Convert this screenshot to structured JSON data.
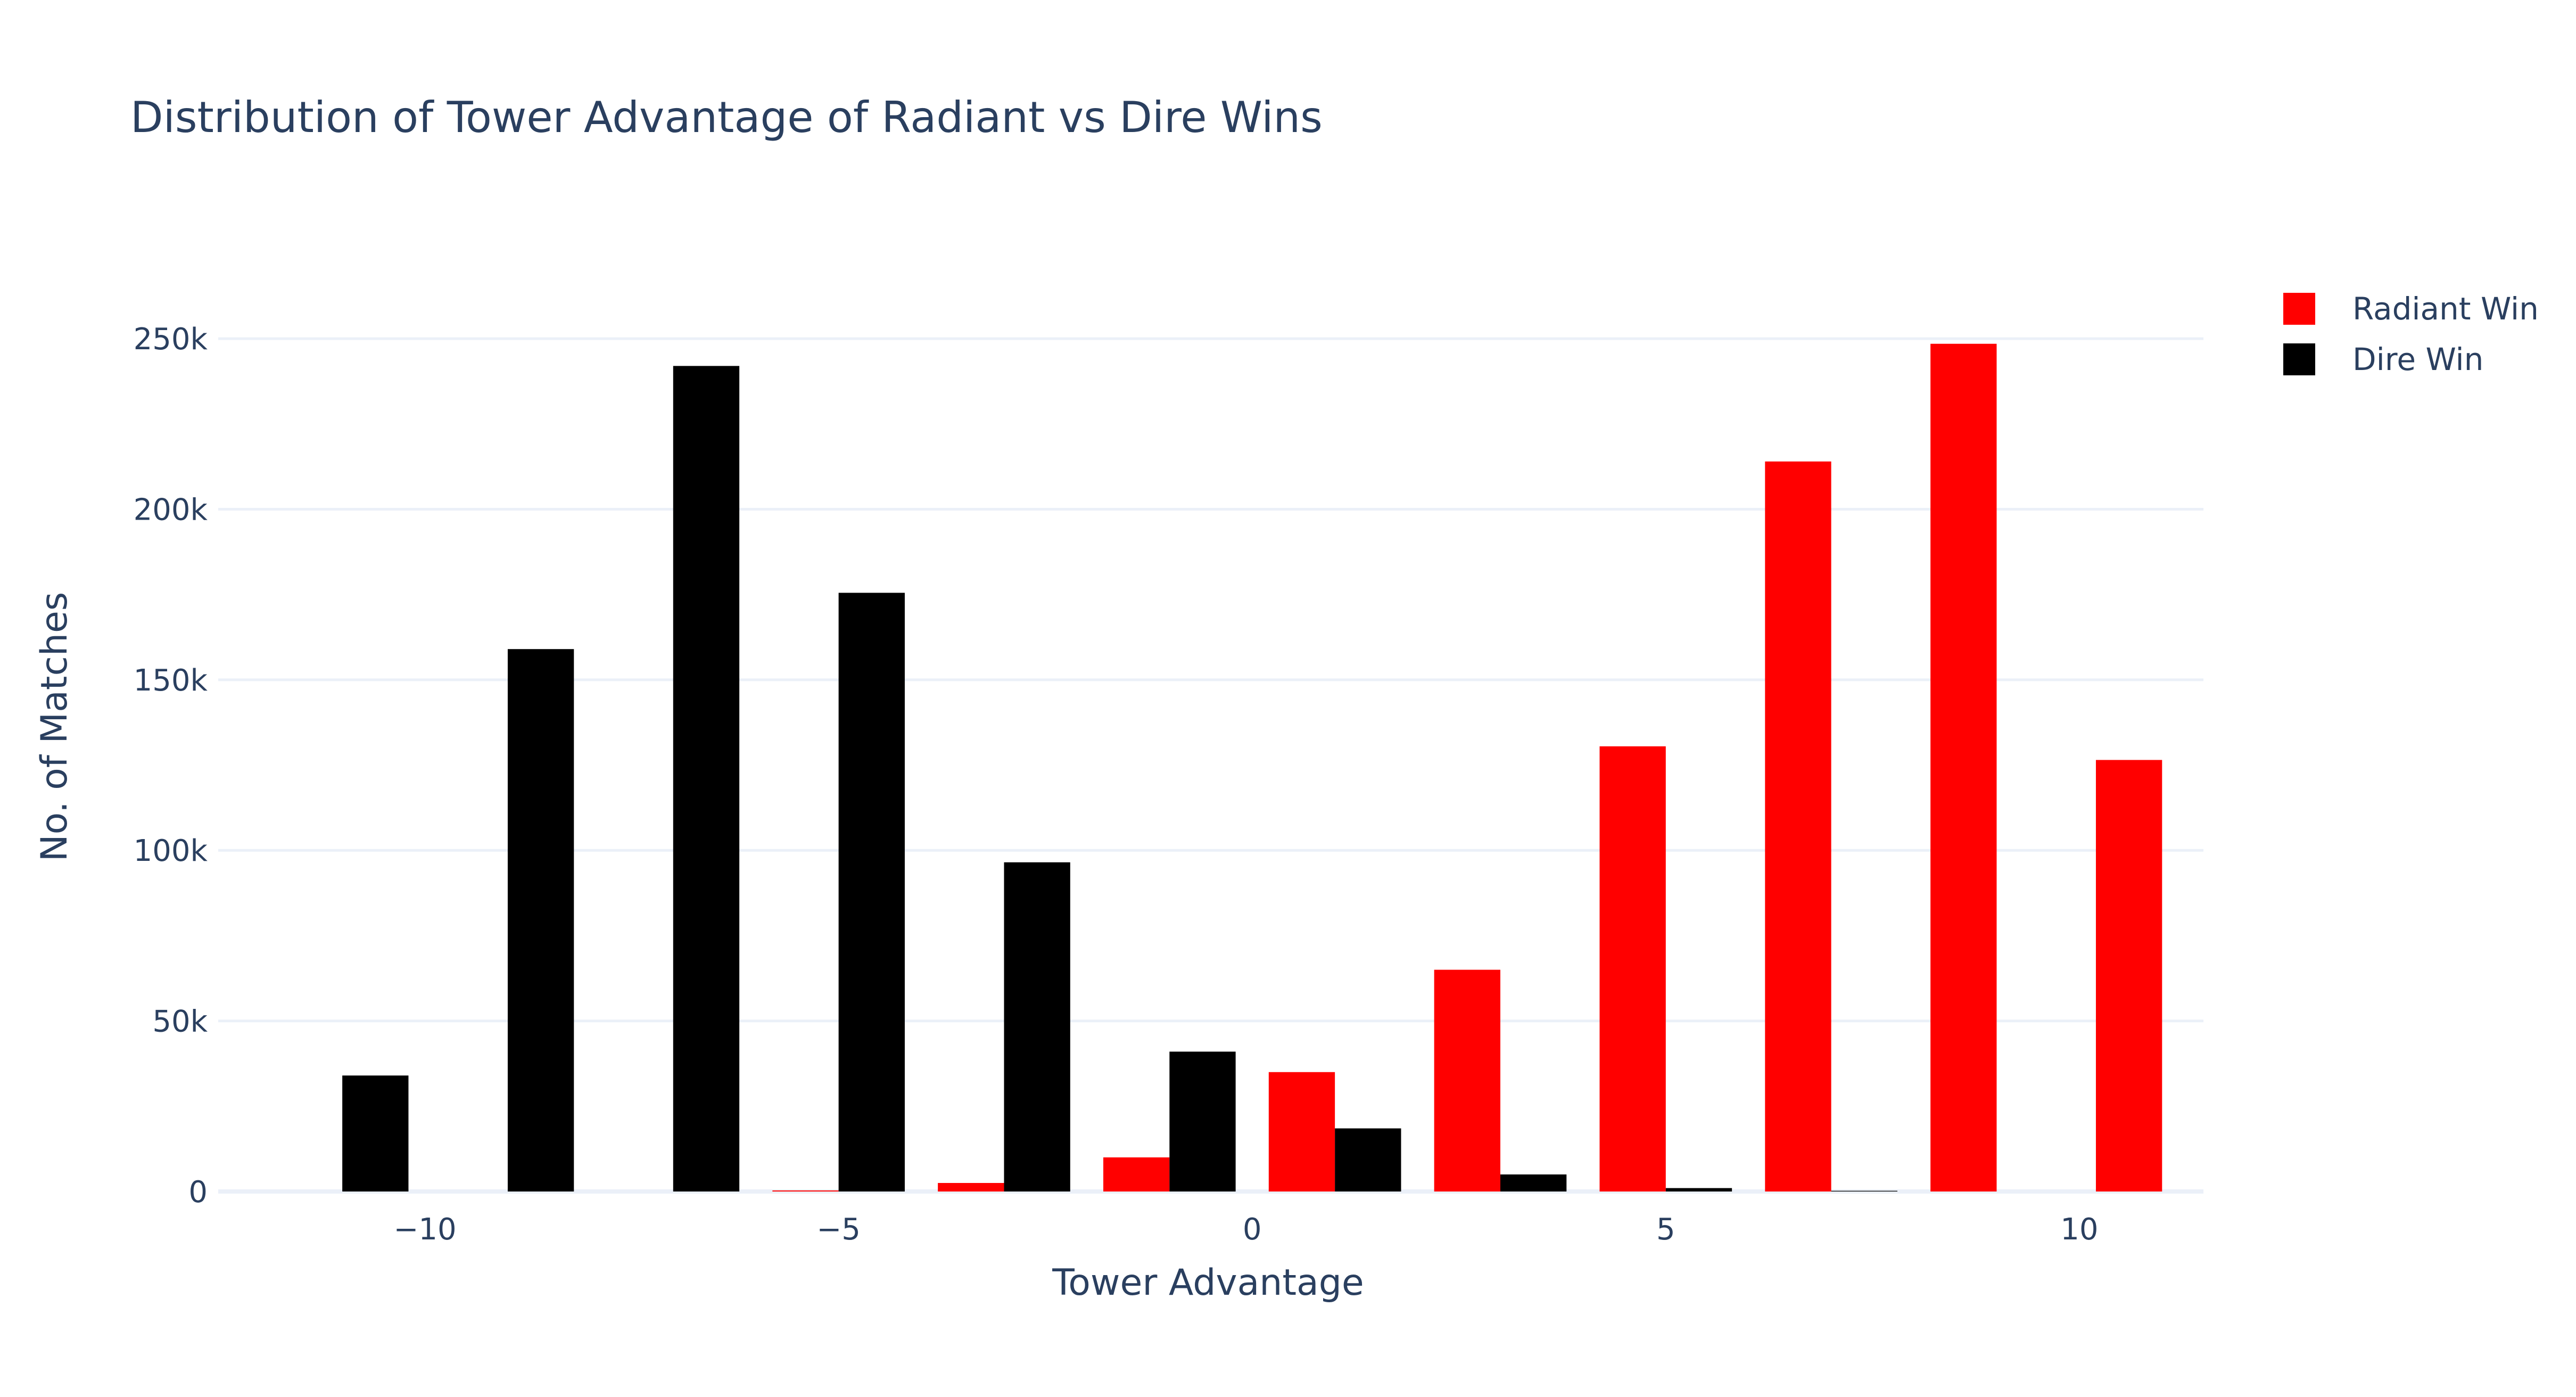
{
  "chart_data": {
    "type": "bar",
    "title": "Distribution of Tower Advantage of Radiant vs Dire Wins",
    "xlabel": "Tower Advantage",
    "ylabel": "No. of Matches",
    "xlim": [
      -12.5,
      11.5
    ],
    "ylim": [
      0,
      265000
    ],
    "x_ticks": [
      -10,
      -5,
      0,
      5,
      10
    ],
    "x_tick_labels": [
      "−10",
      "−5",
      "0",
      "5",
      "10"
    ],
    "y_ticks": [
      0,
      50000,
      100000,
      150000,
      200000,
      250000
    ],
    "y_tick_labels": [
      "0",
      "50k",
      "100k",
      "150k",
      "200k",
      "250k"
    ],
    "bin_width": 2,
    "bins": [
      -11,
      -9,
      -7,
      -5,
      -3,
      -1,
      1,
      3,
      5,
      7,
      9,
      11
    ],
    "legend": "top-right",
    "grid": true,
    "series": [
      {
        "name": "Radiant Win",
        "color": "#ff0000",
        "values": [
          0,
          0,
          0,
          300,
          2500,
          10000,
          35000,
          65000,
          130500,
          214000,
          248500,
          126500
        ]
      },
      {
        "name": "Dire Win",
        "color": "#000000",
        "values": [
          34000,
          159000,
          242000,
          175500,
          96500,
          41000,
          18500,
          5000,
          1000,
          200,
          0,
          0
        ]
      }
    ]
  }
}
